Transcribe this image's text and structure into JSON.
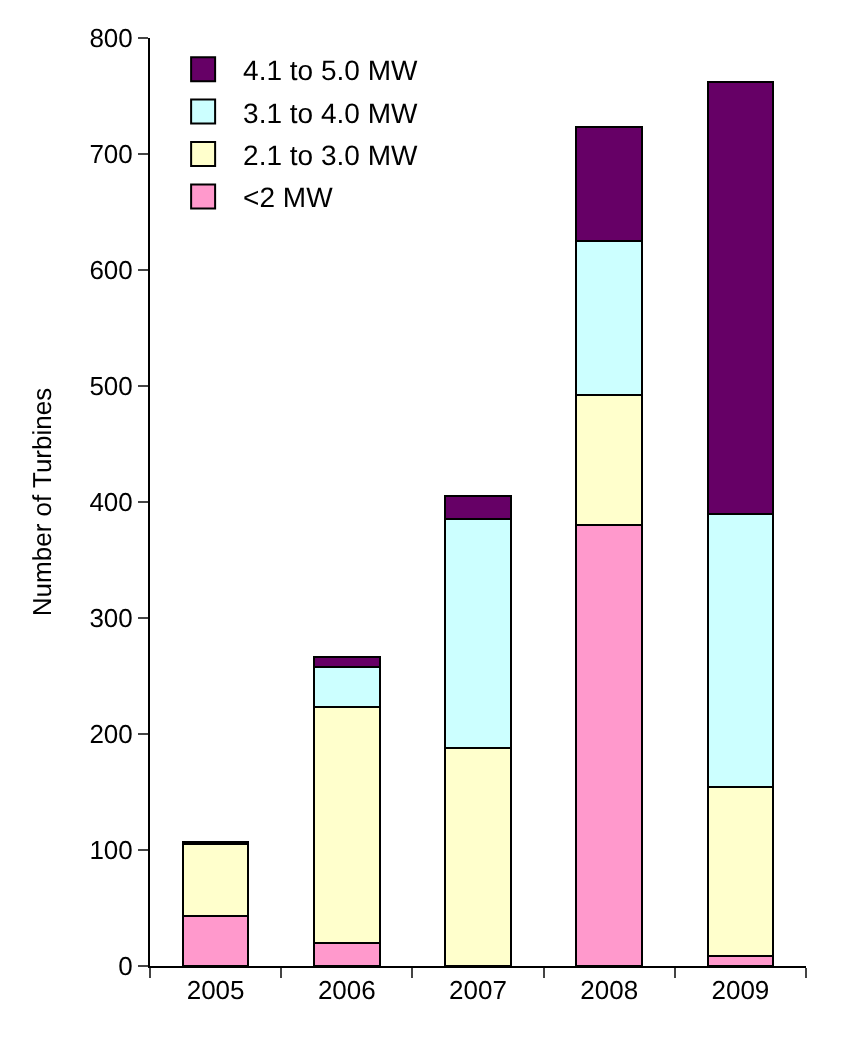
{
  "chart_data": {
    "type": "bar",
    "stacked": true,
    "ylabel": "Number of Turbines",
    "categories": [
      "2005",
      "2006",
      "2007",
      "2008",
      "2009"
    ],
    "series": [
      {
        "name": "<2 MW",
        "color": "#ff99cc",
        "values": [
          43,
          20,
          null,
          380,
          9
        ]
      },
      {
        "name": "2.1 to 3.0 MW",
        "color": "#ffffcc",
        "values": [
          62,
          203,
          188,
          112,
          145
        ]
      },
      {
        "name": "3.1 to 4.0 MW",
        "color": "#ccffff",
        "values": [
          null,
          35,
          197,
          133,
          236
        ]
      },
      {
        "name": "4.1 to 5.0 MW",
        "color": "#660066",
        "values": [
          2,
          8,
          20,
          98,
          372
        ]
      }
    ],
    "ylim": [
      0,
      800
    ],
    "yticks": [
      0,
      100,
      200,
      300,
      400,
      500,
      600,
      700,
      800
    ],
    "legend": "top left"
  }
}
